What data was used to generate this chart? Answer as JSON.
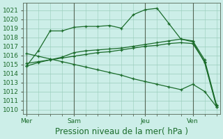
{
  "title": "Pression niveau de la mer( hPa )",
  "bg_color": "#cceee8",
  "grid_color": "#99ccbb",
  "line_color": "#1a6b2a",
  "vline_color": "#556655",
  "ylim": [
    1009.5,
    1021.8
  ],
  "yticks": [
    1010,
    1011,
    1012,
    1013,
    1014,
    1015,
    1016,
    1017,
    1018,
    1019,
    1020,
    1021
  ],
  "xtick_labels": [
    "Mer",
    "Sam",
    "Jeu",
    "Ven"
  ],
  "xtick_positions": [
    0,
    4,
    10,
    14
  ],
  "vline_positions": [
    0,
    4,
    10,
    14
  ],
  "xlim": [
    -0.3,
    16.3
  ],
  "num_points": 17,
  "line1": [
    1014.8,
    1016.5,
    1018.7,
    1018.7,
    1019.1,
    1019.2,
    1019.2,
    1019.3,
    1019.0,
    1020.5,
    1021.05,
    1021.2,
    1019.5,
    1017.8,
    1017.5,
    1015.2,
    1010.3
  ],
  "line2": [
    1014.8,
    1015.2,
    1015.5,
    1015.8,
    1016.3,
    1016.5,
    1016.6,
    1016.7,
    1016.8,
    1017.0,
    1017.2,
    1017.4,
    1017.6,
    1017.8,
    1017.6,
    1015.5,
    1010.5
  ],
  "line3": [
    1015.1,
    1015.3,
    1015.5,
    1015.7,
    1015.9,
    1016.1,
    1016.3,
    1016.4,
    1016.6,
    1016.8,
    1017.0,
    1017.1,
    1017.3,
    1017.4,
    1017.3,
    1015.3,
    1010.4
  ],
  "line4": [
    1016.2,
    1015.9,
    1015.6,
    1015.3,
    1015.0,
    1014.7,
    1014.4,
    1014.1,
    1013.8,
    1013.4,
    1013.1,
    1012.8,
    1012.5,
    1012.2,
    1012.8,
    1012.0,
    1010.3
  ],
  "tick_fontsize": 6.5,
  "title_fontsize": 8.5
}
